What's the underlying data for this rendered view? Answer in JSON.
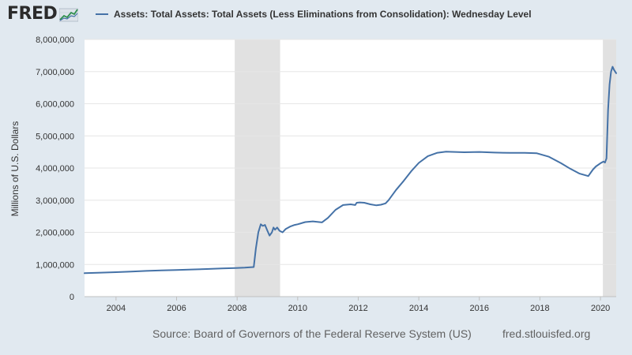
{
  "header": {
    "logo_text": "FRED",
    "legend_label": "Assets: Total Assets: Total Assets (Less Eliminations from Consolidation): Wednesday Level"
  },
  "footer": {
    "source": "Source: Board of Governors of the Federal Reserve System (US)",
    "site": "fred.stlouisfed.org"
  },
  "colors": {
    "page_bg": "#e1e9f0",
    "plot_bg": "#ffffff",
    "grid": "#e6e6e6",
    "series": "#4572a7",
    "recession": "#e1e1e1",
    "logo": "#2b2b2b"
  },
  "icons": {
    "logo_graph": "line-graph-logo-icon"
  },
  "chart_data": {
    "type": "line",
    "title": "",
    "xlabel": "",
    "ylabel": "Millions of U.S. Dollars",
    "xlim": [
      2002.96,
      2020.52
    ],
    "ylim": [
      0,
      8000000
    ],
    "grid": true,
    "legend_position": "top",
    "x_ticks": [
      2004,
      2006,
      2008,
      2010,
      2012,
      2014,
      2016,
      2018,
      2020
    ],
    "x_tick_labels": [
      "2004",
      "2006",
      "2008",
      "2010",
      "2012",
      "2014",
      "2016",
      "2018",
      "2020"
    ],
    "y_ticks": [
      0,
      1000000,
      2000000,
      3000000,
      4000000,
      5000000,
      6000000,
      7000000,
      8000000
    ],
    "y_tick_labels": [
      "0",
      "1,000,000",
      "2,000,000",
      "3,000,000",
      "4,000,000",
      "5,000,000",
      "6,000,000",
      "7,000,000",
      "8,000,000"
    ],
    "recessions": [
      [
        2007.92,
        2009.42
      ],
      [
        2020.08,
        2020.52
      ]
    ],
    "series": [
      {
        "name": "Assets: Total Assets: Total Assets (Less Eliminations from Consolidation): Wednesday Level",
        "x": [
          2002.96,
          2003.5,
          2004.0,
          2004.5,
          2005.0,
          2005.5,
          2006.0,
          2006.5,
          2007.0,
          2007.5,
          2007.95,
          2008.25,
          2008.55,
          2008.62,
          2008.7,
          2008.78,
          2008.85,
          2008.92,
          2009.0,
          2009.07,
          2009.15,
          2009.2,
          2009.25,
          2009.32,
          2009.4,
          2009.5,
          2009.6,
          2009.75,
          2009.9,
          2010.0,
          2010.25,
          2010.5,
          2010.8,
          2011.0,
          2011.25,
          2011.5,
          2011.75,
          2011.9,
          2011.95,
          2012.05,
          2012.2,
          2012.4,
          2012.6,
          2012.75,
          2012.9,
          2013.0,
          2013.25,
          2013.5,
          2013.75,
          2014.0,
          2014.3,
          2014.6,
          2014.9,
          2015.2,
          2015.5,
          2016.0,
          2016.5,
          2017.0,
          2017.5,
          2017.9,
          2018.3,
          2018.7,
          2019.0,
          2019.3,
          2019.6,
          2019.75,
          2019.85,
          2020.0,
          2020.1,
          2020.15,
          2020.2,
          2020.25,
          2020.3,
          2020.35,
          2020.4,
          2020.45,
          2020.52
        ],
        "values": [
          730000,
          745000,
          760000,
          780000,
          800000,
          815000,
          830000,
          845000,
          860000,
          875000,
          890000,
          900000,
          920000,
          1500000,
          2000000,
          2250000,
          2200000,
          2230000,
          2050000,
          1900000,
          2000000,
          2150000,
          2080000,
          2150000,
          2050000,
          2000000,
          2100000,
          2180000,
          2230000,
          2250000,
          2320000,
          2340000,
          2310000,
          2450000,
          2700000,
          2850000,
          2870000,
          2850000,
          2920000,
          2930000,
          2920000,
          2870000,
          2840000,
          2860000,
          2900000,
          3000000,
          3320000,
          3600000,
          3900000,
          4160000,
          4370000,
          4470000,
          4510000,
          4500000,
          4490000,
          4500000,
          4480000,
          4470000,
          4470000,
          4460000,
          4350000,
          4150000,
          3980000,
          3830000,
          3750000,
          3950000,
          4050000,
          4150000,
          4200000,
          4170000,
          4300000,
          5800000,
          6600000,
          7000000,
          7150000,
          7050000,
          6950000
        ]
      }
    ]
  }
}
